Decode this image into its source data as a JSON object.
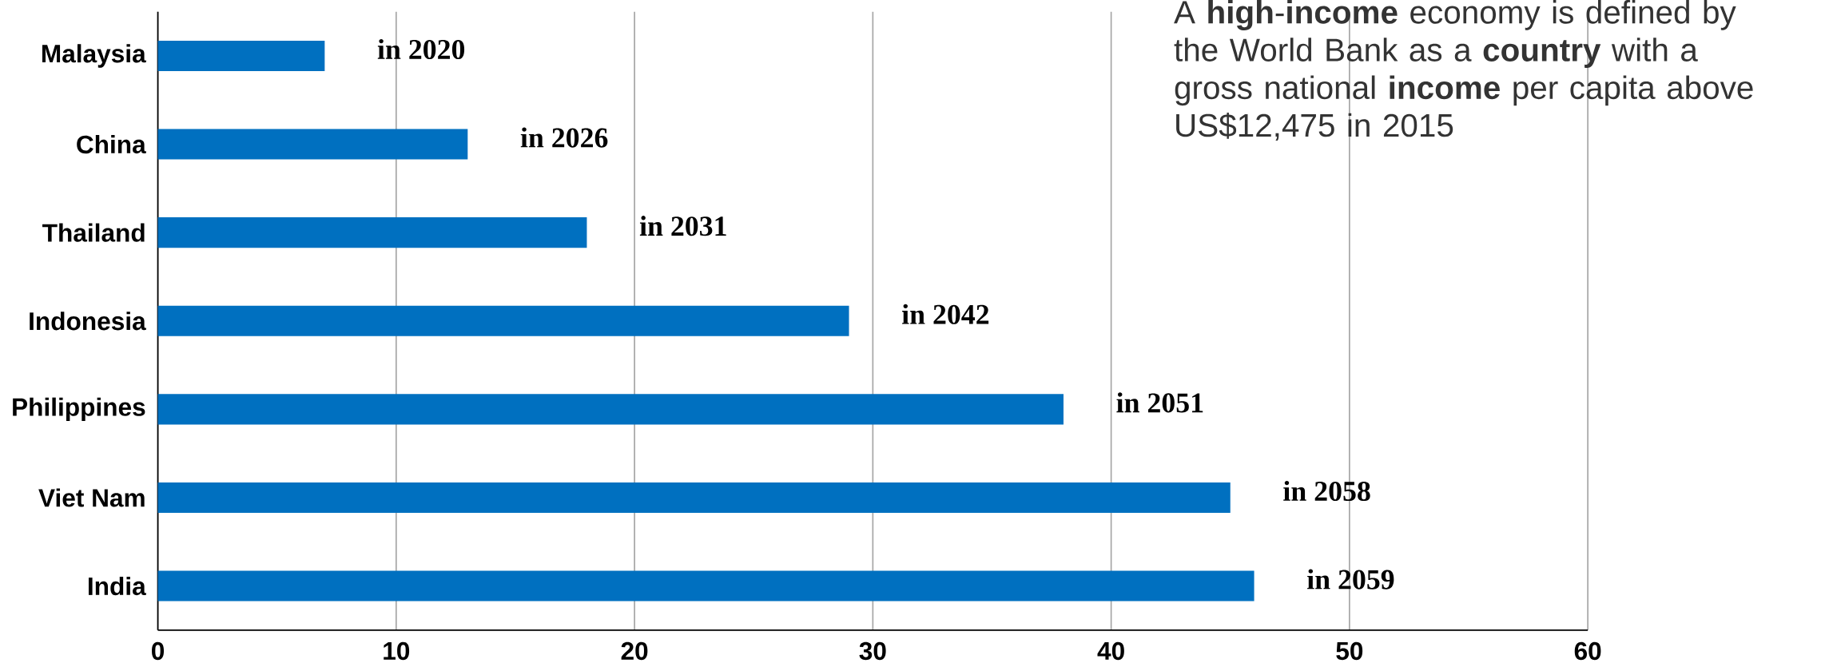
{
  "chart_data": {
    "type": "bar",
    "orientation": "horizontal",
    "categories": [
      "Malaysia",
      "China",
      "Thailand",
      "Indonesia",
      "Philippines",
      "Viet Nam",
      "India"
    ],
    "values": [
      7,
      13,
      18,
      29,
      38,
      45,
      46
    ],
    "value_labels": [
      "in 2020",
      "in 2026",
      "in 2031",
      "in 2042",
      "in 2051",
      "in 2058",
      "in 2059"
    ],
    "color": "#0070c0",
    "xlim": [
      0,
      60
    ],
    "xticks": [
      0,
      10,
      20,
      30,
      40,
      50,
      60
    ],
    "grid": "x",
    "annotations": [
      "A **high**-**income** economy is defined by the World Bank as a **country** with a gross national **income** per capita above US$12,475 in 2015"
    ]
  }
}
